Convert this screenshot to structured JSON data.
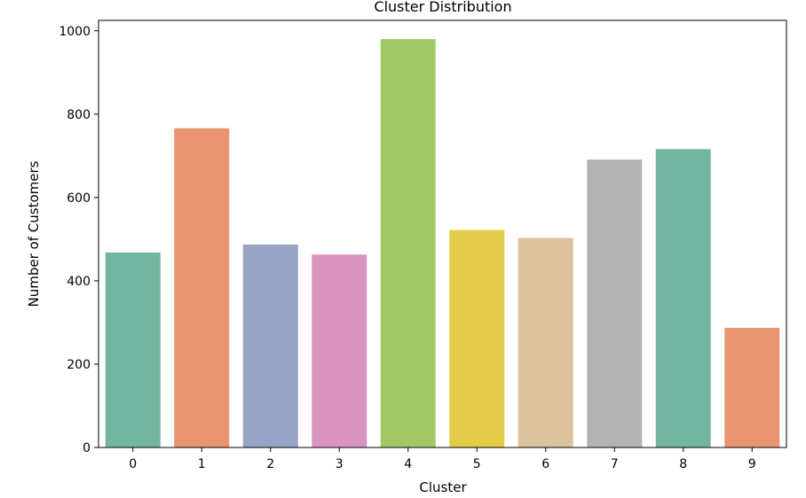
{
  "chart_data": {
    "type": "bar",
    "title": "Cluster Distribution",
    "xlabel": "Cluster",
    "ylabel": "Number of Customers",
    "categories": [
      "0",
      "1",
      "2",
      "3",
      "4",
      "5",
      "6",
      "7",
      "8",
      "9"
    ],
    "values": [
      468,
      766,
      487,
      463,
      980,
      522,
      503,
      691,
      716,
      287
    ],
    "ylim": [
      0,
      1025
    ],
    "yticks": [
      0,
      200,
      400,
      600,
      800,
      1000
    ],
    "colors": [
      "#73b5a0",
      "#e99572",
      "#95a3c4",
      "#da94c0",
      "#a2c865",
      "#e4cb48",
      "#dcc39c",
      "#b3b3b3",
      "#73b5a0",
      "#e99572"
    ],
    "grid": false,
    "legend": "none"
  }
}
